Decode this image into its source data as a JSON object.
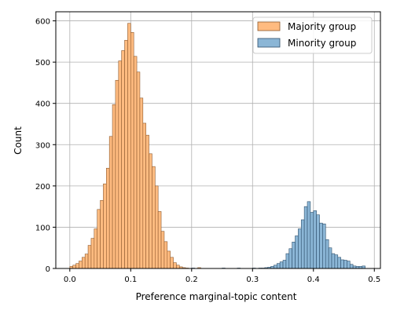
{
  "chart_data": {
    "type": "bar",
    "xlabel": "Preference marginal-topic content",
    "ylabel": "Count",
    "xlim": [
      -0.023,
      0.51
    ],
    "ylim": [
      0,
      622
    ],
    "x_ticks": [
      0.0,
      0.1,
      0.2,
      0.3,
      0.4,
      0.5
    ],
    "x_tick_labels": [
      "0.0",
      "0.1",
      "0.2",
      "0.3",
      "0.4",
      "0.5"
    ],
    "y_ticks": [
      0,
      100,
      200,
      300,
      400,
      500,
      600
    ],
    "y_tick_labels": [
      "0",
      "100",
      "200",
      "300",
      "400",
      "500",
      "600"
    ],
    "grid": true,
    "legend_position": "top-right",
    "series": [
      {
        "name": "Majority group",
        "color": "#ffbb80",
        "edge_color": "#8c5a2e",
        "bin_width": 0.005,
        "x": [
          0.0025,
          0.0075,
          0.0125,
          0.0175,
          0.0225,
          0.0275,
          0.0325,
          0.0375,
          0.0425,
          0.0475,
          0.0525,
          0.0575,
          0.0625,
          0.0675,
          0.0725,
          0.0775,
          0.0825,
          0.0875,
          0.0925,
          0.0975,
          0.1025,
          0.1075,
          0.1125,
          0.1175,
          0.1225,
          0.1275,
          0.1325,
          0.1375,
          0.1425,
          0.1475,
          0.1525,
          0.1575,
          0.1625,
          0.1675,
          0.1725,
          0.1775,
          0.1825,
          0.1875,
          0.1925,
          0.2125
        ],
        "values": [
          5,
          8,
          12,
          18,
          27,
          35,
          56,
          73,
          96,
          143,
          165,
          205,
          243,
          320,
          397,
          456,
          503,
          528,
          553,
          594,
          572,
          514,
          476,
          413,
          352,
          323,
          278,
          247,
          200,
          138,
          90,
          65,
          42,
          27,
          14,
          8,
          4,
          2,
          1,
          2
        ]
      },
      {
        "name": "Minority group",
        "color": "#8bb6d6",
        "edge_color": "#2e4f6b",
        "bin_width": 0.005,
        "x": [
          0.2025,
          0.2525,
          0.2775,
          0.3025,
          0.3125,
          0.3175,
          0.3225,
          0.3275,
          0.3325,
          0.3375,
          0.3425,
          0.3475,
          0.3525,
          0.3575,
          0.3625,
          0.3675,
          0.3725,
          0.3775,
          0.3825,
          0.3875,
          0.3925,
          0.3975,
          0.4025,
          0.4075,
          0.4125,
          0.4175,
          0.4225,
          0.4275,
          0.4325,
          0.4375,
          0.4425,
          0.4475,
          0.4525,
          0.4575,
          0.4625,
          0.4675,
          0.4725,
          0.4775,
          0.4825
        ],
        "values": [
          1,
          1,
          1,
          1,
          1,
          1,
          2,
          3,
          5,
          8,
          12,
          16,
          20,
          36,
          48,
          64,
          79,
          96,
          118,
          150,
          162,
          136,
          140,
          130,
          110,
          108,
          70,
          50,
          36,
          33,
          27,
          21,
          20,
          18,
          10,
          6,
          5,
          5,
          6
        ]
      }
    ]
  }
}
